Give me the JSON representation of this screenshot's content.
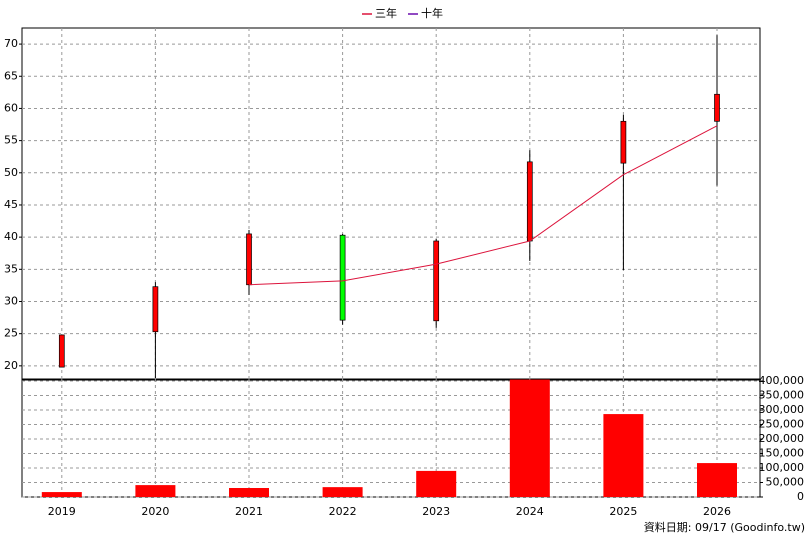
{
  "chart_data": [
    {
      "type": "candlestick",
      "categories": [
        "2019",
        "2020",
        "2021",
        "2022",
        "2023",
        "2024",
        "2025",
        "2026"
      ],
      "open": [
        19.8,
        25.3,
        32.6,
        40.3,
        27.0,
        39.4,
        51.5,
        58.0
      ],
      "high": [
        24.8,
        33.0,
        41.1,
        40.5,
        39.7,
        53.5,
        59.0,
        71.4
      ],
      "low": [
        19.8,
        18.1,
        31.0,
        26.4,
        25.9,
        36.3,
        34.9,
        48.0
      ],
      "close": [
        24.8,
        32.3,
        40.5,
        27.1,
        39.4,
        51.7,
        58.0,
        62.2
      ],
      "up_color": "#ff0000",
      "down_color": "#00ff00",
      "series": [
        {
          "name": "三年",
          "color": "#dc143c",
          "values": [
            null,
            null,
            32.6,
            33.2,
            35.8,
            39.4,
            49.7,
            57.3
          ]
        },
        {
          "name": "十年",
          "color": "#6a0dad",
          "values": [
            null,
            null,
            null,
            null,
            null,
            null,
            null,
            null
          ]
        }
      ],
      "ylim": [
        17.8,
        72.5
      ],
      "yticks": [
        20,
        25,
        30,
        35,
        40,
        45,
        50,
        55,
        60,
        65,
        70
      ],
      "grid": true,
      "legend": "top"
    },
    {
      "type": "bar",
      "categories": [
        "2019",
        "2020",
        "2021",
        "2022",
        "2023",
        "2024",
        "2025",
        "2026"
      ],
      "values": [
        17000,
        41000,
        31000,
        34000,
        90000,
        405000,
        286000,
        117000
      ],
      "color": "#ff0000",
      "ylim": [
        0,
        407000
      ],
      "yticks": [
        {
          "value": 0,
          "label": "0"
        },
        {
          "value": 50000,
          "label": "50,000"
        },
        {
          "value": 100000,
          "label": "100,000"
        },
        {
          "value": 150000,
          "label": "150,000"
        },
        {
          "value": 200000,
          "label": "200,000"
        },
        {
          "value": 250000,
          "label": "250,000"
        },
        {
          "value": 300000,
          "label": "300,000"
        },
        {
          "value": 350000,
          "label": "350,000"
        },
        {
          "value": 400000,
          "label": "400,000"
        }
      ],
      "grid": true
    }
  ],
  "footer": "資料日期: 09/17  (Goodinfo.tw)"
}
